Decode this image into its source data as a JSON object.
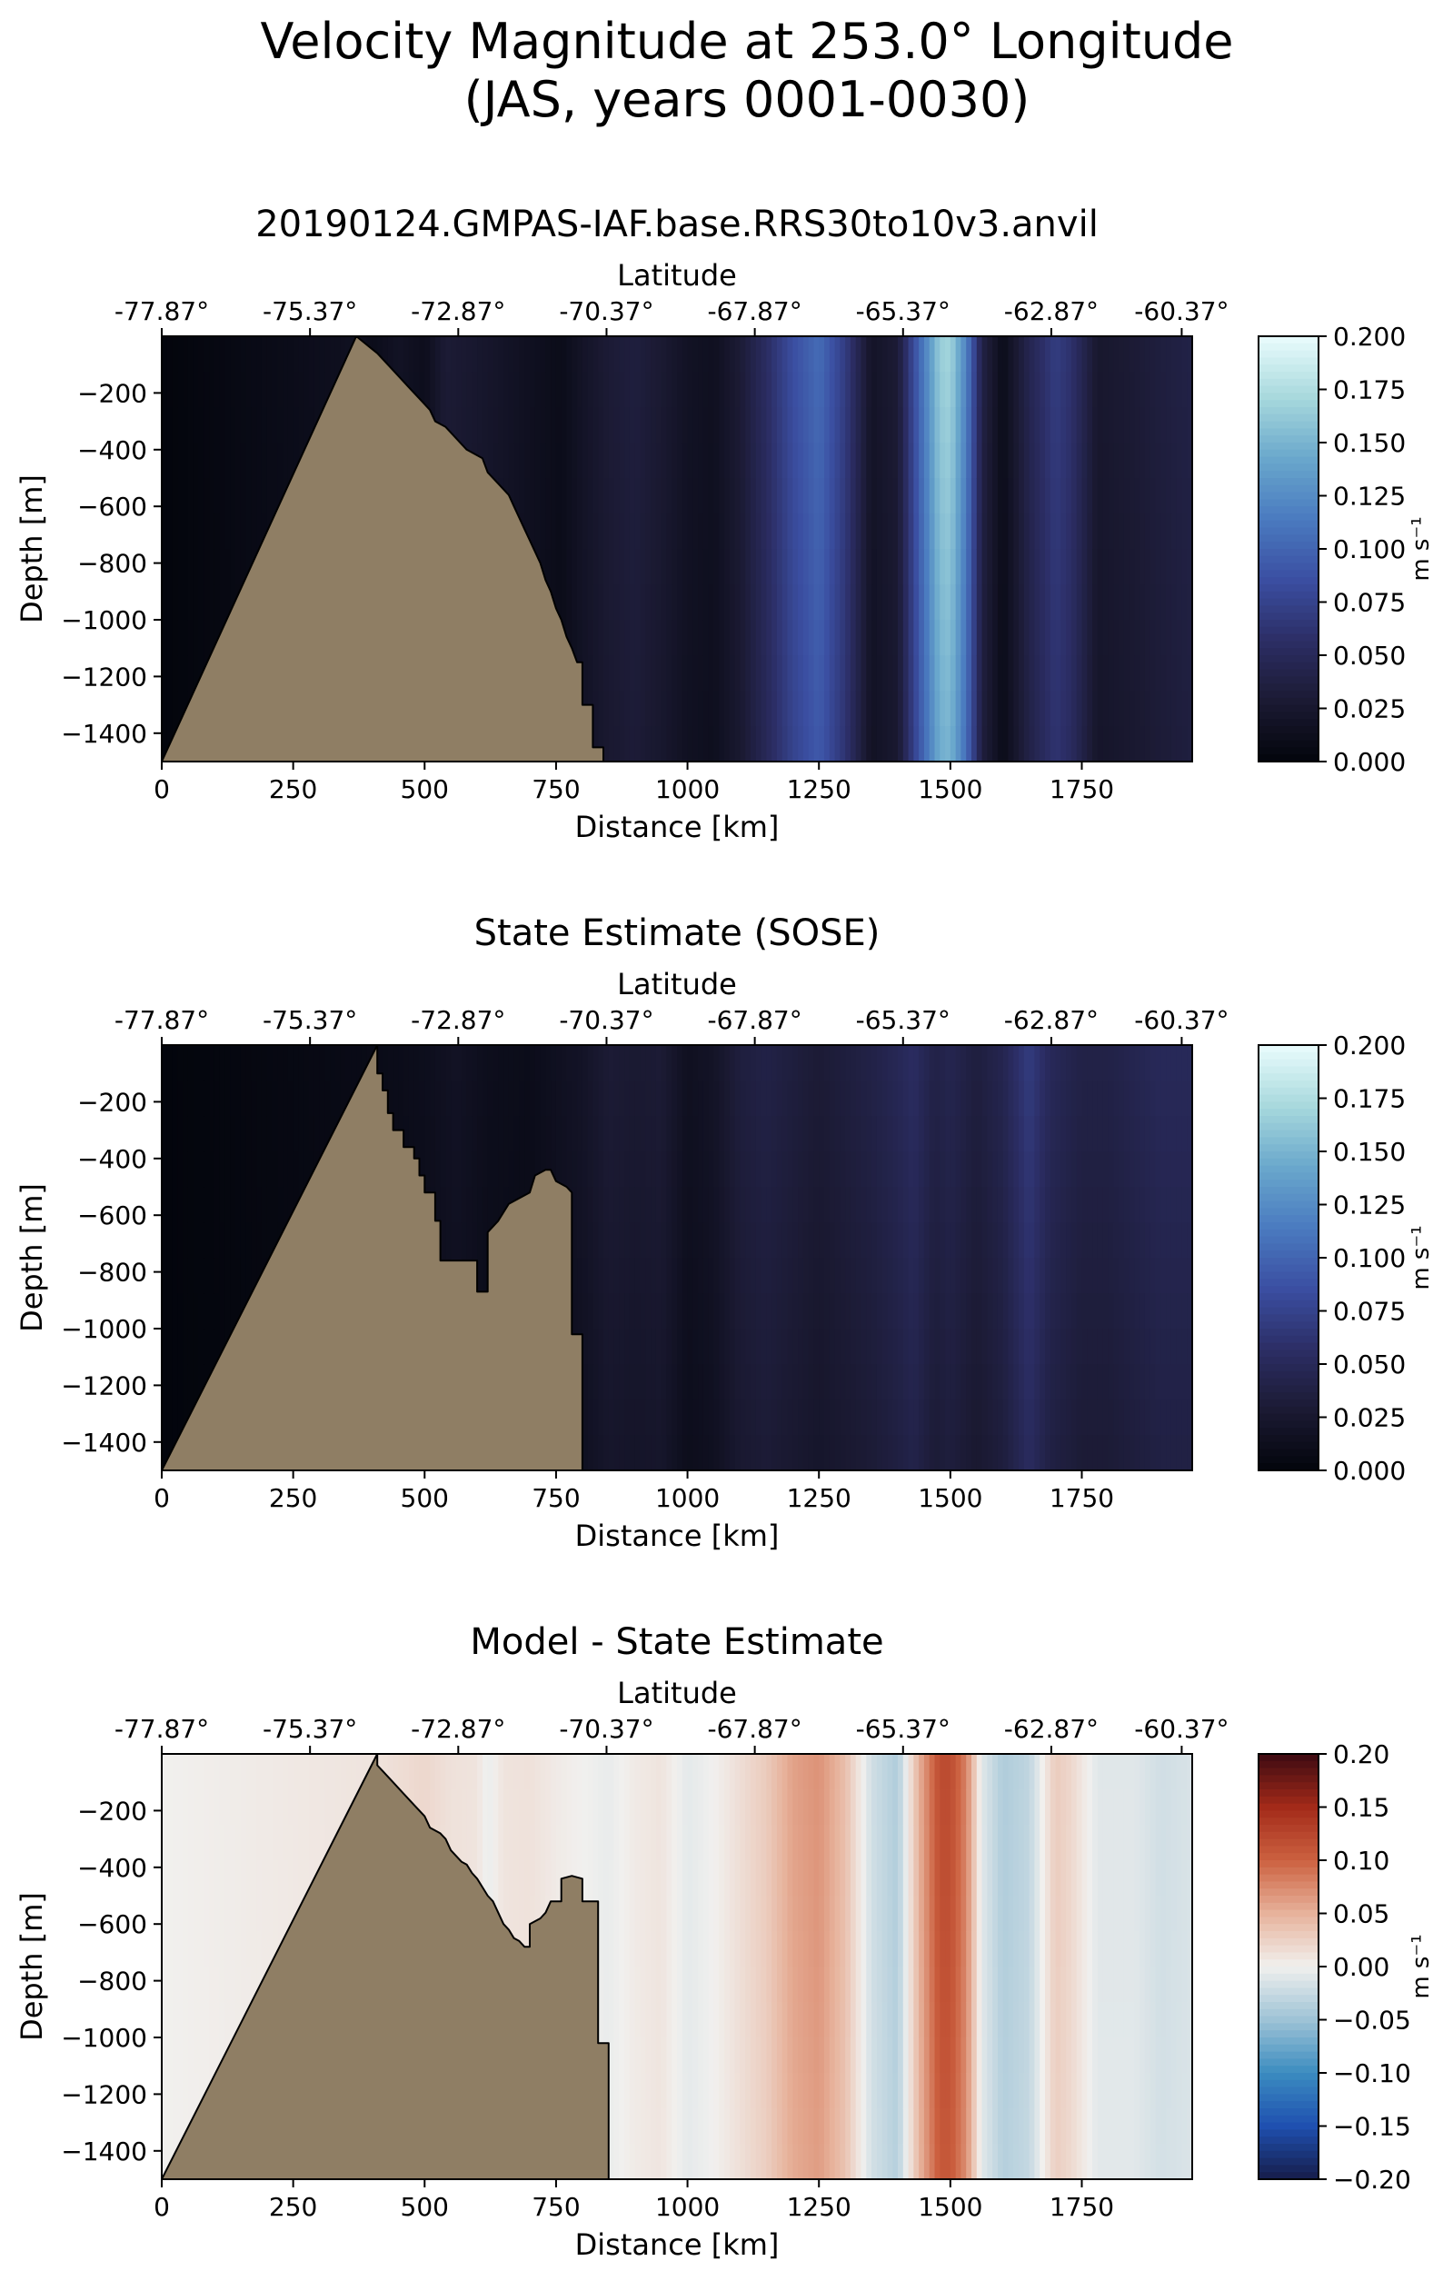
{
  "figure": {
    "title_line1": "Velocity Magnitude at 253.0° Longitude",
    "title_line2": "(JAS, years 0001-0030)"
  },
  "colors": {
    "land": "#8f7e64",
    "magnitude_cmap": [
      "#03050c",
      "#1b1a33",
      "#2c2e66",
      "#3b4fa2",
      "#4a7bc0",
      "#6aa8cc",
      "#a8d9dd",
      "#eafcfd"
    ],
    "difference_cmap": [
      "#161d4a",
      "#1f50b0",
      "#3b8cc0",
      "#9ec3d6",
      "#f1f0ee",
      "#e7b29b",
      "#cc6140",
      "#a32a19",
      "#3c0a12"
    ]
  },
  "chart_data": [
    {
      "type": "heatmap",
      "title": "20190124.GMPAS-IAF.base.RRS30to10v3.anvil",
      "xlabel": "Distance [km]",
      "ylabel": "Depth [m]",
      "top_xlabel": "Latitude",
      "xlim": [
        0,
        1960
      ],
      "ylim": [
        -1500,
        0
      ],
      "xticks": [
        0,
        250,
        500,
        750,
        1000,
        1250,
        1500,
        1750
      ],
      "xtick_labels": [
        "0",
        "250",
        "500",
        "750",
        "1000",
        "1250",
        "1500",
        "1750"
      ],
      "yticks": [
        -200,
        -400,
        -600,
        -800,
        -1000,
        -1200,
        -1400
      ],
      "ytick_labels": [
        "−200",
        "−400",
        "−600",
        "−800",
        "−1000",
        "−1200",
        "−1400"
      ],
      "top_ticks": [
        0,
        282,
        564,
        846,
        1128,
        1410,
        1692,
        1940
      ],
      "top_tick_labels": [
        "-77.87°",
        "-75.37°",
        "-72.87°",
        "-70.37°",
        "-67.87°",
        "-65.37°",
        "-62.87°",
        "-60.37°"
      ],
      "colorbar": {
        "label": "m s⁻¹",
        "ticks": [
          0.0,
          0.025,
          0.05,
          0.075,
          0.1,
          0.125,
          0.15,
          0.175,
          0.2
        ],
        "tick_labels": [
          "0.000",
          "0.025",
          "0.050",
          "0.075",
          "0.100",
          "0.125",
          "0.150",
          "0.175",
          "0.200"
        ],
        "vmin": 0.0,
        "vmax": 0.2,
        "cmap": "magnitude"
      },
      "column_values": [
        [
          0,
          0.0
        ],
        [
          370,
          0.015
        ],
        [
          400,
          0.01
        ],
        [
          450,
          0.018
        ],
        [
          500,
          0.012
        ],
        [
          540,
          0.03
        ],
        [
          600,
          0.025
        ],
        [
          650,
          0.02
        ],
        [
          700,
          0.015
        ],
        [
          760,
          0.01
        ],
        [
          800,
          0.02
        ],
        [
          850,
          0.03
        ],
        [
          900,
          0.035
        ],
        [
          950,
          0.028
        ],
        [
          1000,
          0.018
        ],
        [
          1050,
          0.015
        ],
        [
          1100,
          0.03
        ],
        [
          1150,
          0.055
        ],
        [
          1200,
          0.085
        ],
        [
          1250,
          0.105
        ],
        [
          1300,
          0.07
        ],
        [
          1350,
          0.02
        ],
        [
          1400,
          0.03
        ],
        [
          1440,
          0.1
        ],
        [
          1480,
          0.165
        ],
        [
          1500,
          0.17
        ],
        [
          1530,
          0.12
        ],
        [
          1560,
          0.04
        ],
        [
          1600,
          0.01
        ],
        [
          1650,
          0.045
        ],
        [
          1700,
          0.07
        ],
        [
          1730,
          0.06
        ],
        [
          1780,
          0.025
        ],
        [
          1850,
          0.03
        ],
        [
          1900,
          0.035
        ],
        [
          1960,
          0.04
        ]
      ],
      "depth_decay": 0.12,
      "seafloor": [
        [
          0,
          -1500
        ],
        [
          370,
          0
        ],
        [
          390,
          -30
        ],
        [
          410,
          -60
        ],
        [
          430,
          -100
        ],
        [
          450,
          -140
        ],
        [
          470,
          -180
        ],
        [
          490,
          -220
        ],
        [
          510,
          -260
        ],
        [
          520,
          -300
        ],
        [
          540,
          -320
        ],
        [
          560,
          -360
        ],
        [
          580,
          -400
        ],
        [
          610,
          -430
        ],
        [
          620,
          -480
        ],
        [
          640,
          -520
        ],
        [
          660,
          -560
        ],
        [
          670,
          -600
        ],
        [
          680,
          -640
        ],
        [
          690,
          -680
        ],
        [
          700,
          -720
        ],
        [
          710,
          -760
        ],
        [
          720,
          -800
        ],
        [
          730,
          -860
        ],
        [
          740,
          -900
        ],
        [
          750,
          -960
        ],
        [
          760,
          -1000
        ],
        [
          770,
          -1060
        ],
        [
          780,
          -1100
        ],
        [
          790,
          -1150
        ],
        [
          800,
          -1150
        ],
        [
          800,
          -1300
        ],
        [
          820,
          -1300
        ],
        [
          820,
          -1450
        ],
        [
          840,
          -1450
        ],
        [
          840,
          -1500
        ]
      ]
    },
    {
      "type": "heatmap",
      "title": "State Estimate (SOSE)",
      "xlabel": "Distance [km]",
      "ylabel": "Depth [m]",
      "top_xlabel": "Latitude",
      "xlim": [
        0,
        1960
      ],
      "ylim": [
        -1500,
        0
      ],
      "xticks": [
        0,
        250,
        500,
        750,
        1000,
        1250,
        1500,
        1750
      ],
      "xtick_labels": [
        "0",
        "250",
        "500",
        "750",
        "1000",
        "1250",
        "1500",
        "1750"
      ],
      "yticks": [
        -200,
        -400,
        -600,
        -800,
        -1000,
        -1200,
        -1400
      ],
      "ytick_labels": [
        "−200",
        "−400",
        "−600",
        "−800",
        "−1000",
        "−1200",
        "−1400"
      ],
      "top_ticks": [
        0,
        282,
        564,
        846,
        1128,
        1410,
        1692,
        1940
      ],
      "top_tick_labels": [
        "-77.87°",
        "-75.37°",
        "-72.87°",
        "-70.37°",
        "-67.87°",
        "-65.37°",
        "-62.87°",
        "-60.37°"
      ],
      "colorbar": {
        "label": "m s⁻¹",
        "ticks": [
          0.0,
          0.025,
          0.05,
          0.075,
          0.1,
          0.125,
          0.15,
          0.175,
          0.2
        ],
        "tick_labels": [
          "0.000",
          "0.025",
          "0.050",
          "0.075",
          "0.100",
          "0.125",
          "0.150",
          "0.175",
          "0.200"
        ],
        "vmin": 0.0,
        "vmax": 0.2,
        "cmap": "magnitude"
      },
      "column_values": [
        [
          0,
          0.0
        ],
        [
          400,
          0.008
        ],
        [
          500,
          0.012
        ],
        [
          560,
          0.018
        ],
        [
          620,
          0.012
        ],
        [
          700,
          0.01
        ],
        [
          800,
          0.02
        ],
        [
          850,
          0.03
        ],
        [
          900,
          0.028
        ],
        [
          950,
          0.03
        ],
        [
          1000,
          0.015
        ],
        [
          1050,
          0.02
        ],
        [
          1100,
          0.035
        ],
        [
          1150,
          0.04
        ],
        [
          1200,
          0.035
        ],
        [
          1250,
          0.03
        ],
        [
          1300,
          0.035
        ],
        [
          1350,
          0.04
        ],
        [
          1400,
          0.048
        ],
        [
          1430,
          0.055
        ],
        [
          1470,
          0.04
        ],
        [
          1500,
          0.045
        ],
        [
          1550,
          0.035
        ],
        [
          1600,
          0.045
        ],
        [
          1630,
          0.06
        ],
        [
          1650,
          0.07
        ],
        [
          1690,
          0.05
        ],
        [
          1750,
          0.04
        ],
        [
          1800,
          0.04
        ],
        [
          1850,
          0.045
        ],
        [
          1900,
          0.05
        ],
        [
          1960,
          0.05
        ]
      ],
      "depth_decay": 0.25,
      "seafloor": [
        [
          0,
          -1500
        ],
        [
          410,
          0
        ],
        [
          410,
          -100
        ],
        [
          420,
          -100
        ],
        [
          420,
          -160
        ],
        [
          430,
          -160
        ],
        [
          430,
          -240
        ],
        [
          440,
          -240
        ],
        [
          440,
          -300
        ],
        [
          460,
          -300
        ],
        [
          460,
          -360
        ],
        [
          480,
          -360
        ],
        [
          480,
          -400
        ],
        [
          490,
          -400
        ],
        [
          490,
          -460
        ],
        [
          500,
          -460
        ],
        [
          500,
          -520
        ],
        [
          520,
          -520
        ],
        [
          520,
          -620
        ],
        [
          530,
          -620
        ],
        [
          530,
          -760
        ],
        [
          580,
          -760
        ],
        [
          600,
          -760
        ],
        [
          600,
          -870
        ],
        [
          620,
          -870
        ],
        [
          620,
          -660
        ],
        [
          640,
          -620
        ],
        [
          660,
          -560
        ],
        [
          680,
          -540
        ],
        [
          700,
          -520
        ],
        [
          710,
          -460
        ],
        [
          730,
          -440
        ],
        [
          740,
          -440
        ],
        [
          750,
          -480
        ],
        [
          770,
          -500
        ],
        [
          780,
          -520
        ],
        [
          780,
          -1020
        ],
        [
          800,
          -1020
        ],
        [
          800,
          -1500
        ]
      ]
    },
    {
      "type": "heatmap",
      "title": "Model - State Estimate",
      "xlabel": "Distance [km]",
      "ylabel": "Depth [m]",
      "top_xlabel": "Latitude",
      "xlim": [
        0,
        1960
      ],
      "ylim": [
        -1500,
        0
      ],
      "xticks": [
        0,
        250,
        500,
        750,
        1000,
        1250,
        1500,
        1750
      ],
      "xtick_labels": [
        "0",
        "250",
        "500",
        "750",
        "1000",
        "1250",
        "1500",
        "1750"
      ],
      "yticks": [
        -200,
        -400,
        -600,
        -800,
        -1000,
        -1200,
        -1400
      ],
      "ytick_labels": [
        "−200",
        "−400",
        "−600",
        "−800",
        "−1000",
        "−1200",
        "−1400"
      ],
      "top_ticks": [
        0,
        282,
        564,
        846,
        1128,
        1410,
        1692,
        1940
      ],
      "top_tick_labels": [
        "-77.87°",
        "-75.37°",
        "-72.87°",
        "-70.37°",
        "-67.87°",
        "-65.37°",
        "-62.87°",
        "-60.37°"
      ],
      "colorbar": {
        "label": "m s⁻¹",
        "ticks": [
          -0.2,
          -0.15,
          -0.1,
          -0.05,
          0.0,
          0.05,
          0.1,
          0.15,
          0.2
        ],
        "tick_labels": [
          "−0.20",
          "−0.15",
          "−0.10",
          "−0.05",
          "0.00",
          "0.05",
          "0.10",
          "0.15",
          "0.20"
        ],
        "vmin": -0.2,
        "vmax": 0.2,
        "cmap": "difference"
      },
      "column_values": [
        [
          0,
          0.0
        ],
        [
          400,
          0.01
        ],
        [
          450,
          0.015
        ],
        [
          500,
          0.02
        ],
        [
          550,
          0.012
        ],
        [
          600,
          0.01
        ],
        [
          620,
          -0.005
        ],
        [
          650,
          0.01
        ],
        [
          700,
          0.012
        ],
        [
          750,
          0.005
        ],
        [
          800,
          0.0
        ],
        [
          850,
          -0.005
        ],
        [
          900,
          0.005
        ],
        [
          950,
          0.01
        ],
        [
          1000,
          -0.008
        ],
        [
          1050,
          0.0
        ],
        [
          1100,
          0.015
        ],
        [
          1150,
          0.03
        ],
        [
          1200,
          0.06
        ],
        [
          1250,
          0.07
        ],
        [
          1300,
          0.04
        ],
        [
          1350,
          -0.02
        ],
        [
          1400,
          -0.04
        ],
        [
          1440,
          0.05
        ],
        [
          1480,
          0.12
        ],
        [
          1500,
          0.12
        ],
        [
          1530,
          0.08
        ],
        [
          1560,
          -0.01
        ],
        [
          1600,
          -0.04
        ],
        [
          1650,
          -0.03
        ],
        [
          1700,
          0.03
        ],
        [
          1730,
          0.02
        ],
        [
          1780,
          -0.01
        ],
        [
          1850,
          -0.01
        ],
        [
          1900,
          -0.02
        ],
        [
          1960,
          -0.015
        ]
      ],
      "depth_decay": 0.1,
      "seafloor": [
        [
          0,
          -1500
        ],
        [
          410,
          0
        ],
        [
          410,
          -40
        ],
        [
          420,
          -60
        ],
        [
          440,
          -100
        ],
        [
          460,
          -140
        ],
        [
          480,
          -180
        ],
        [
          500,
          -220
        ],
        [
          510,
          -260
        ],
        [
          530,
          -280
        ],
        [
          540,
          -300
        ],
        [
          550,
          -340
        ],
        [
          560,
          -360
        ],
        [
          570,
          -380
        ],
        [
          580,
          -390
        ],
        [
          590,
          -420
        ],
        [
          600,
          -440
        ],
        [
          610,
          -470
        ],
        [
          620,
          -500
        ],
        [
          630,
          -520
        ],
        [
          640,
          -560
        ],
        [
          650,
          -600
        ],
        [
          660,
          -620
        ],
        [
          670,
          -650
        ],
        [
          680,
          -660
        ],
        [
          690,
          -680
        ],
        [
          700,
          -680
        ],
        [
          700,
          -600
        ],
        [
          720,
          -580
        ],
        [
          730,
          -560
        ],
        [
          740,
          -520
        ],
        [
          760,
          -520
        ],
        [
          760,
          -440
        ],
        [
          780,
          -430
        ],
        [
          800,
          -440
        ],
        [
          800,
          -520
        ],
        [
          830,
          -520
        ],
        [
          830,
          -1020
        ],
        [
          850,
          -1020
        ],
        [
          850,
          -1500
        ]
      ]
    }
  ]
}
